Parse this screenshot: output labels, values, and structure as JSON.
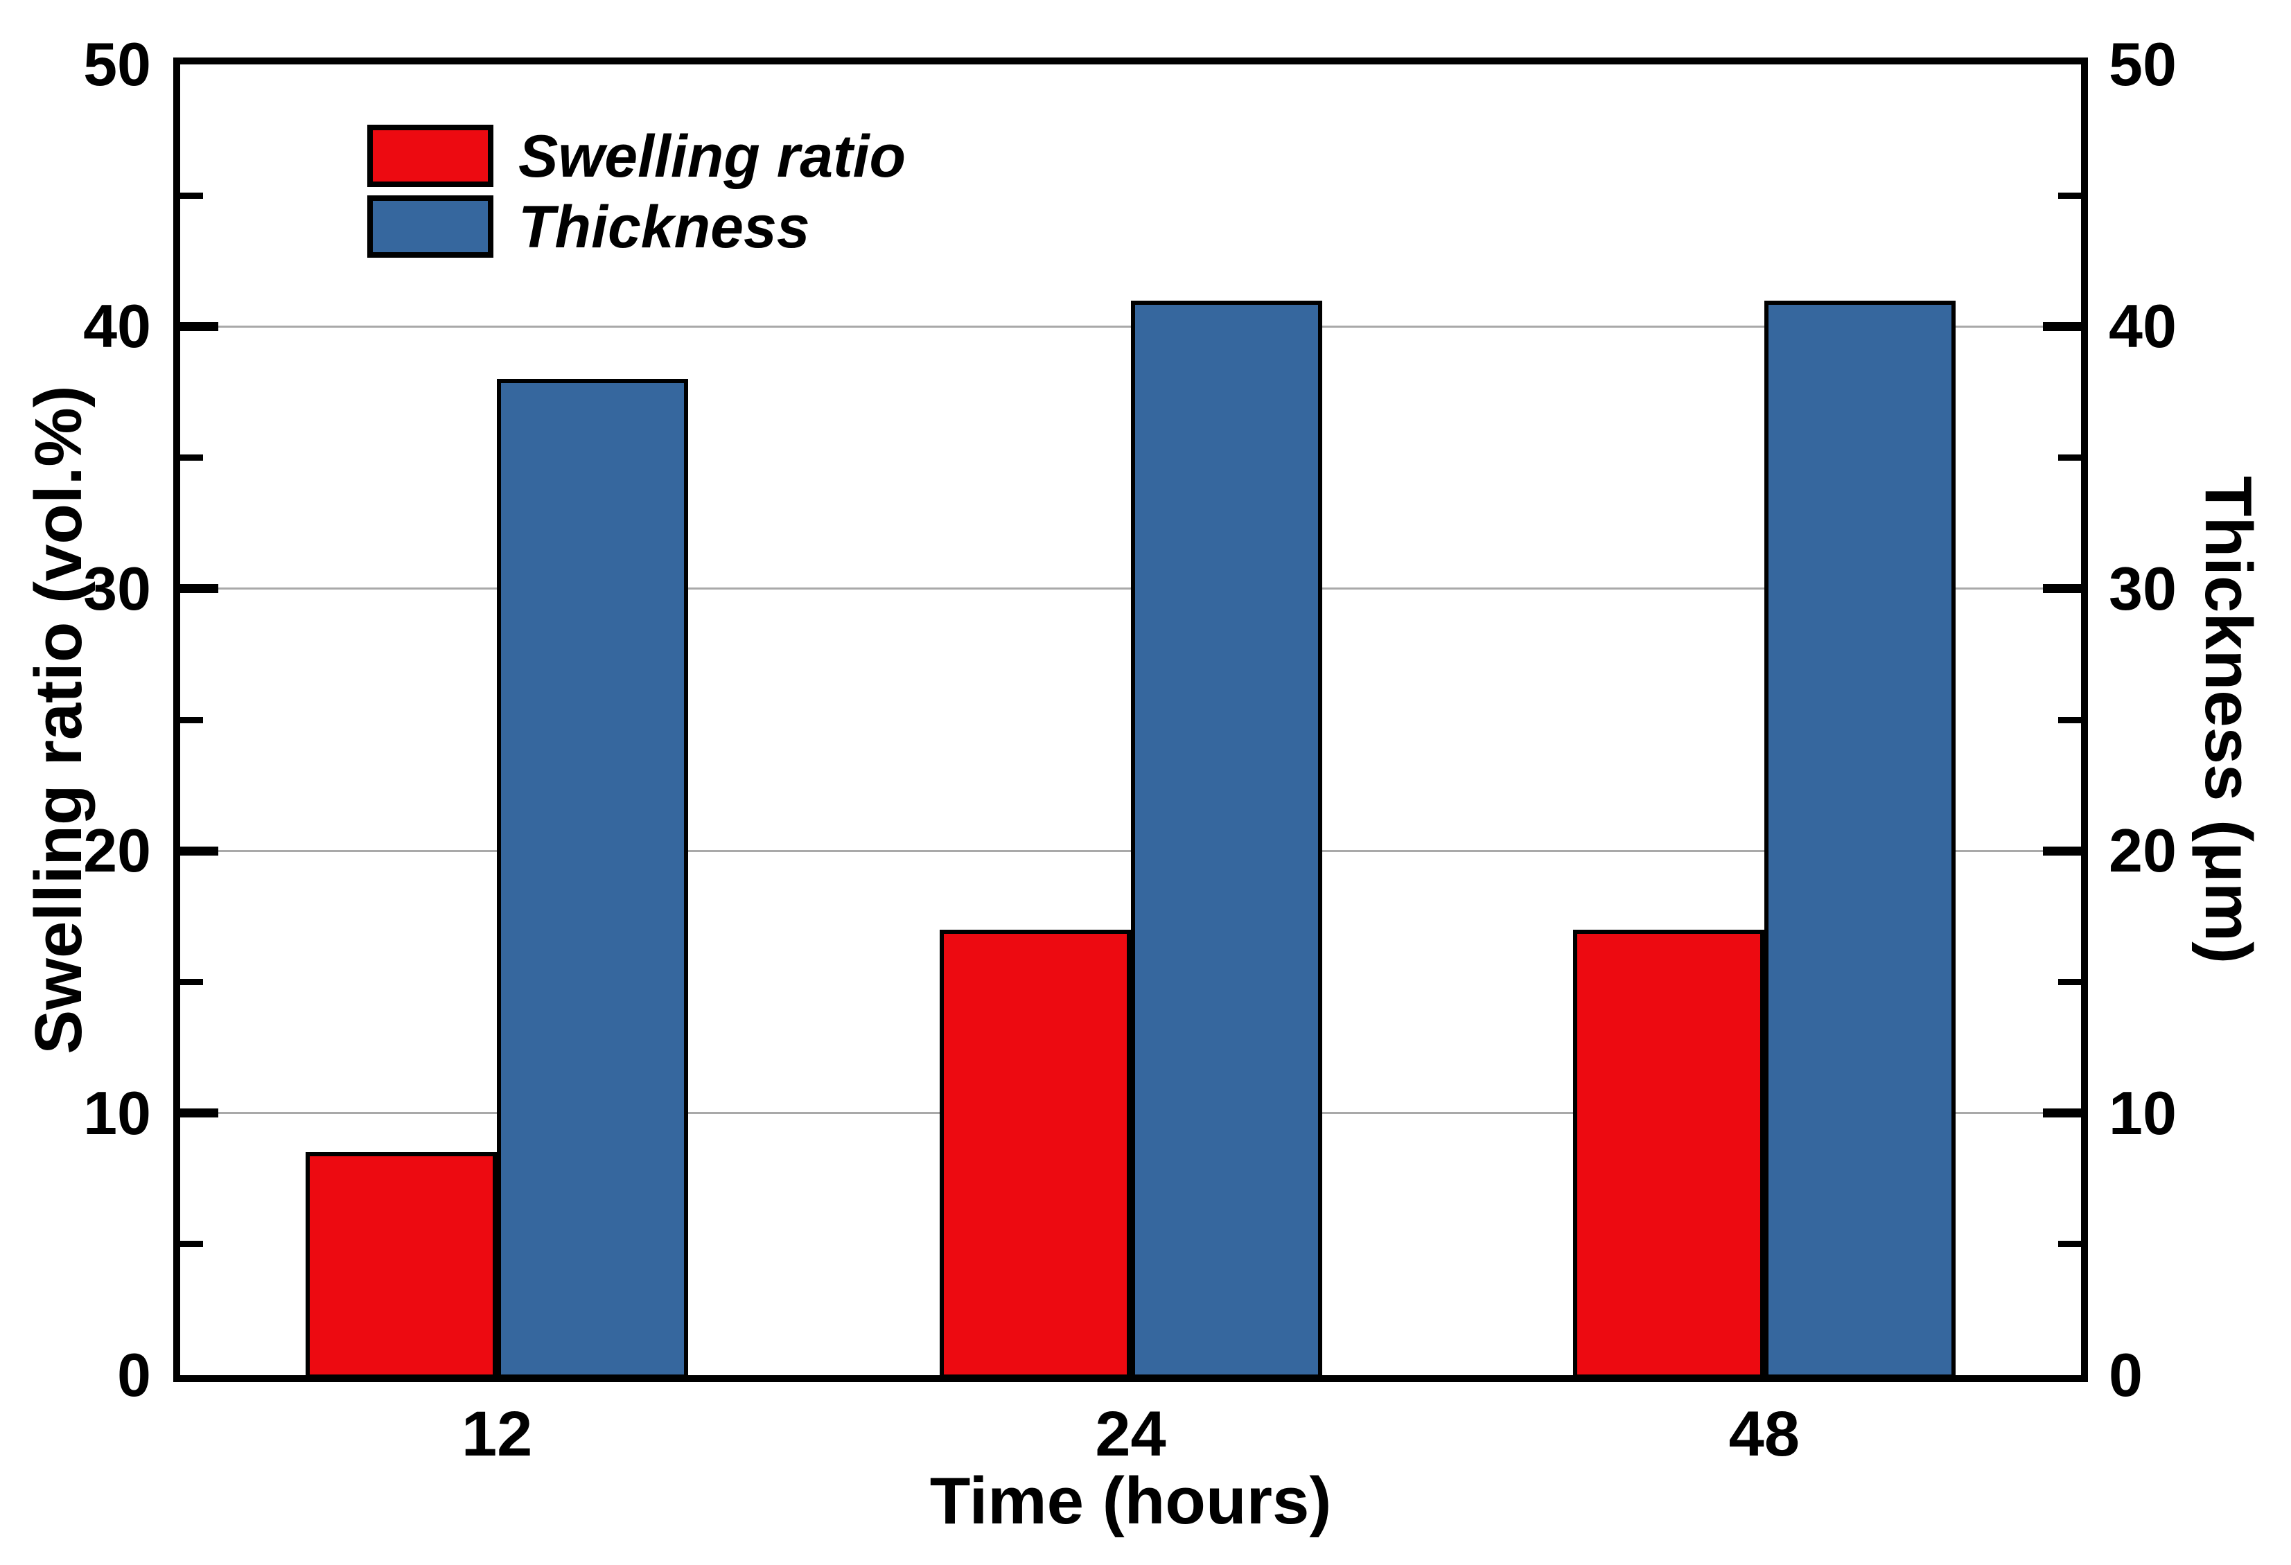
{
  "figure": {
    "background": "#ffffff",
    "legend": {
      "position": "top-left",
      "items": [
        {
          "label": "Swelling ratio",
          "color": "#ed0a11"
        },
        {
          "label": "Thickness",
          "color": "#36679e"
        }
      ]
    },
    "axes": {
      "left": {
        "title": "Swelling ratio (vol.%)",
        "ticks": [
          "0",
          "10",
          "20",
          "30",
          "40",
          "50"
        ]
      },
      "right": {
        "title": "Thickness (μm)",
        "ticks": [
          "0",
          "10",
          "20",
          "30",
          "40",
          "50"
        ]
      },
      "bottom": {
        "title": "Time (hours)",
        "ticks": [
          "12",
          "24",
          "48"
        ]
      }
    }
  },
  "chart_data": {
    "type": "bar",
    "categories": [
      "12",
      "24",
      "48"
    ],
    "series": [
      {
        "name": "Swelling ratio",
        "axis": "left",
        "unit": "vol.%",
        "color": "#ed0a11",
        "values": [
          8.5,
          17,
          17
        ]
      },
      {
        "name": "Thickness",
        "axis": "right",
        "unit": "μm",
        "color": "#36679e",
        "values": [
          38,
          41,
          41
        ]
      }
    ],
    "title": "",
    "xlabel": "Time (hours)",
    "ylabel_left": "Swelling ratio (vol.%)",
    "ylabel_right": "Thickness (μm)",
    "ylim": [
      0,
      50
    ],
    "major_tick_step": 10,
    "minor_tick_step": 5,
    "gridlines": [
      10,
      20,
      30,
      40
    ],
    "grid": true,
    "gridline_color": "#a9a9a9",
    "bar_border_color": "#000000",
    "legend_position": "top-left"
  }
}
